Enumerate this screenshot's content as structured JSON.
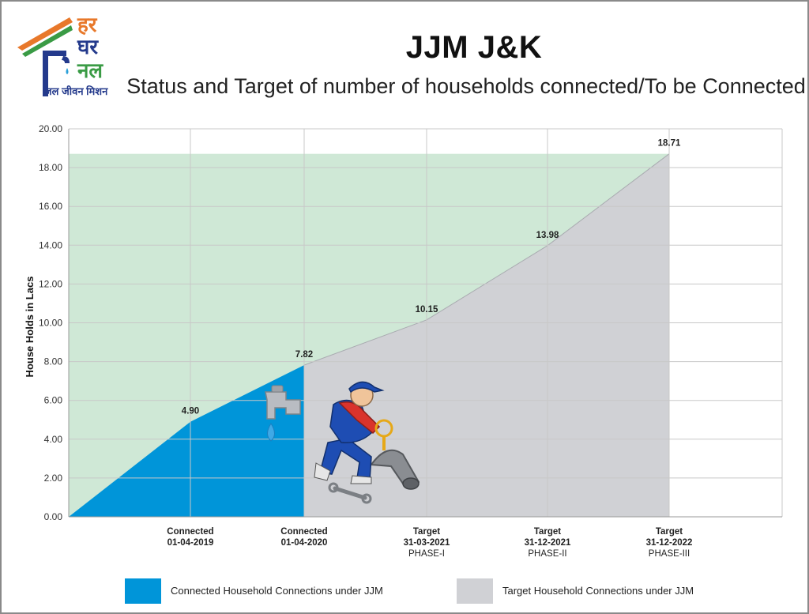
{
  "logo": {
    "line1": "हर",
    "line2": "घर",
    "line3": "नल",
    "tagline": "जल जीवन मिशन"
  },
  "title": "JJM J&K",
  "subtitle": "Status and Target of number of households connected/To be Connected",
  "colors": {
    "connected": "#0095d9",
    "target": "#d0d1d5",
    "background_band": "#cfe8d6",
    "grid": "#c8c8c8"
  },
  "chart_data": {
    "type": "area",
    "ylabel": "House Holds in Lacs",
    "ylim": [
      0,
      20
    ],
    "yticks": [
      "0.00",
      "2.00",
      "4.00",
      "6.00",
      "8.00",
      "10.00",
      "12.00",
      "14.00",
      "16.00",
      "18.00",
      "20.00"
    ],
    "categories": [
      {
        "lines": [
          "Connected",
          "01-04-2019"
        ]
      },
      {
        "lines": [
          "Connected",
          "01-04-2020"
        ]
      },
      {
        "lines": [
          "Target",
          "31-03-2021",
          "PHASE-I"
        ]
      },
      {
        "lines": [
          "Target",
          "31-12-2021",
          "PHASE-II"
        ]
      },
      {
        "lines": [
          "Target",
          "31-12-2022",
          "PHASE-III"
        ]
      }
    ],
    "origin_value": 0,
    "values": [
      4.9,
      7.82,
      10.15,
      13.98,
      18.71
    ],
    "value_labels": [
      "4.90",
      "7.82",
      "10.15",
      "13.98",
      "18.71"
    ],
    "connected_through_index": 1,
    "band_level": 18.71,
    "grid": true,
    "legend_position": "bottom",
    "legend": [
      {
        "label": "Connected Household Connections under JJM",
        "color": "#0095d9"
      },
      {
        "label": "Target Household Connections under JJM",
        "color": "#d0d1d5"
      }
    ]
  }
}
